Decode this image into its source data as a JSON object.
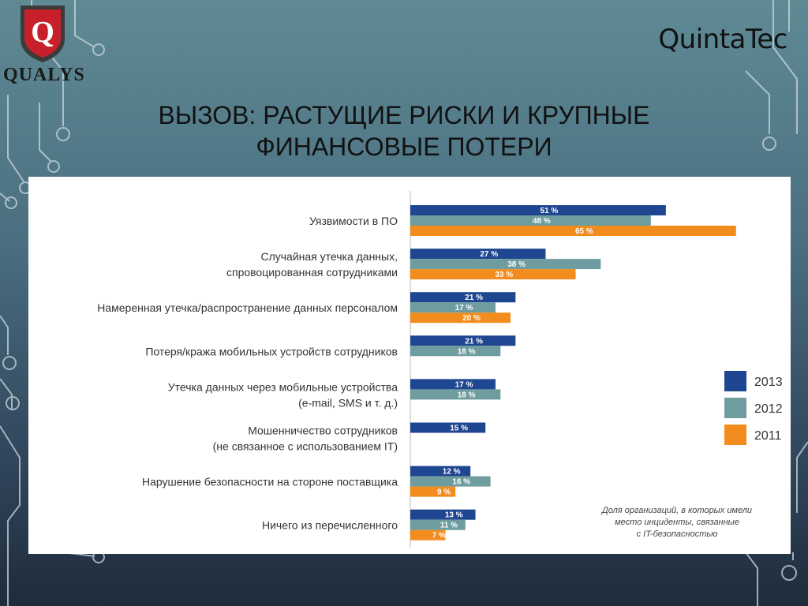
{
  "brand": {
    "left_logo_letter": "Q",
    "left_logo_text": "QUALYS",
    "right_logo_text": "QuintaTec"
  },
  "slide": {
    "title_line1": "ВЫЗОВ: РАСТУЩИЕ РИСКИ И КРУПНЫЕ",
    "title_line2": "ФИНАНСОВЫЕ ПОТЕРИ"
  },
  "colors": {
    "2013": "#1f4690",
    "2012": "#6f9d9f",
    "2011": "#f28c1e"
  },
  "chart_data": {
    "type": "bar",
    "orientation": "horizontal",
    "unit": "%",
    "xlim": [
      0,
      65
    ],
    "grid": false,
    "legend_position": "right",
    "categories": [
      [
        "Уязвимости в ПО"
      ],
      [
        "Случайная утечка данных,",
        "спровоцированная сотрудниками"
      ],
      [
        "Намеренная утечка/распространение данных персоналом"
      ],
      [
        "Потеря/кража мобильных устройств сотрудников"
      ],
      [
        "Утечка данных через мобильные устройства",
        "(e-mail, SMS и т. д.)"
      ],
      [
        "Мошенничество сотрудников",
        "(не связанное с использованием IT)"
      ],
      [
        "Нарушение безопасности на стороне поставщика"
      ],
      [
        "Ничего из перечисленного"
      ]
    ],
    "series": [
      {
        "name": "2013",
        "values": [
          51,
          27,
          21,
          21,
          17,
          15,
          12,
          13
        ]
      },
      {
        "name": "2012",
        "values": [
          48,
          38,
          17,
          18,
          18,
          null,
          16,
          11
        ]
      },
      {
        "name": "2011",
        "values": [
          65,
          33,
          20,
          null,
          null,
          null,
          9,
          7
        ]
      }
    ],
    "value_label_suffix": " %",
    "note": [
      "Доля организаций, в которых имели",
      "место инциденты, связанные",
      "с IT-безопасностью"
    ]
  }
}
